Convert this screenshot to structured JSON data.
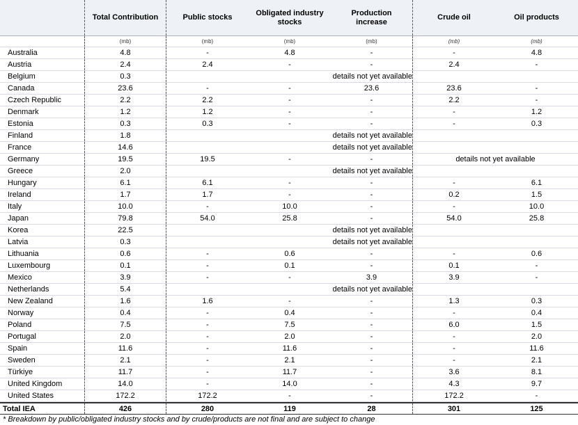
{
  "table": {
    "header": [
      "Total Contribution",
      "Public stocks",
      "Obligated industry stocks",
      "Production increase",
      "Crude oil",
      "Oil products"
    ],
    "units": [
      "(mb)",
      "(mb)",
      "(mb)",
      "(mb)",
      "(mb)",
      "(mb)"
    ],
    "rows": [
      [
        "Australia",
        "4.8",
        "-",
        "4.8",
        "-",
        "-",
        "4.8"
      ],
      [
        "Austria",
        "2.4",
        "2.4",
        "-",
        "-",
        "2.4",
        "-"
      ],
      [
        "Belgium",
        "0.3",
        null,
        null,
        "details not yet available",
        null,
        null
      ],
      [
        "Canada",
        "23.6",
        "-",
        "-",
        "23.6",
        "23.6",
        "-"
      ],
      [
        "Czech Republic",
        "2.2",
        "2.2",
        "-",
        "-",
        "2.2",
        "-"
      ],
      [
        "Denmark",
        "1.2",
        "1.2",
        "-",
        "-",
        "-",
        "1.2"
      ],
      [
        "Estonia",
        "0.3",
        "0.3",
        "-",
        "-",
        "-",
        "0.3"
      ],
      [
        "Finland",
        "1.8",
        null,
        null,
        "details not yet available",
        null,
        null
      ],
      [
        "France",
        "14.6",
        null,
        null,
        "details not yet available",
        null,
        null
      ],
      [
        "Germany",
        "19.5",
        "19.5",
        "-",
        "-",
        "details not yet available"
      ],
      [
        "Greece",
        "2.0",
        null,
        null,
        "details not yet available",
        null,
        null
      ],
      [
        "Hungary",
        "6.1",
        "6.1",
        "-",
        "-",
        "-",
        "6.1"
      ],
      [
        "Ireland",
        "1.7",
        "1.7",
        "-",
        "-",
        "0.2",
        "1.5"
      ],
      [
        "Italy",
        "10.0",
        "-",
        "10.0",
        "-",
        "-",
        "10.0"
      ],
      [
        "Japan",
        "79.8",
        "54.0",
        "25.8",
        "-",
        "54.0",
        "25.8"
      ],
      [
        "Korea",
        "22.5",
        null,
        null,
        "details not yet available",
        null,
        null
      ],
      [
        "Latvia",
        "0.3",
        null,
        null,
        "details not yet available",
        null,
        null
      ],
      [
        "Lithuania",
        "0.6",
        "-",
        "0.6",
        "-",
        "-",
        "0.6"
      ],
      [
        "Luxembourg",
        "0.1",
        "-",
        "0.1",
        "-",
        "0.1",
        "-"
      ],
      [
        "Mexico",
        "3.9",
        "-",
        "-",
        "3.9",
        "3.9",
        "-"
      ],
      [
        "Netherlands",
        "5.4",
        null,
        null,
        "details not yet available",
        null,
        null
      ],
      [
        "New Zealand",
        "1.6",
        "1.6",
        "-",
        "-",
        "1.3",
        "0.3"
      ],
      [
        "Norway",
        "0.4",
        "-",
        "0.4",
        "-",
        "-",
        "0.4"
      ],
      [
        "Poland",
        "7.5",
        "-",
        "7.5",
        "-",
        "6.0",
        "1.5"
      ],
      [
        "Portugal",
        "2.0",
        "-",
        "2.0",
        "-",
        "-",
        "2.0"
      ],
      [
        "Spain",
        "11.6",
        "-",
        "11.6",
        "-",
        "-",
        "11.6"
      ],
      [
        "Sweden",
        "2.1",
        "-",
        "2.1",
        "-",
        "-",
        "2.1"
      ],
      [
        "Türkiye",
        "11.7",
        "-",
        "11.7",
        "-",
        "3.6",
        "8.1"
      ],
      [
        "United Kingdom",
        "14.0",
        "-",
        "14.0",
        "-",
        "4.3",
        "9.7"
      ],
      [
        "United States",
        "172.2",
        "172.2",
        "-",
        "-",
        "172.2",
        "-"
      ]
    ],
    "total": [
      "Total IEA",
      "426",
      "280",
      "119",
      "28",
      "301",
      "125"
    ],
    "footnote": "* Breakdown by public/obligated industry stocks and by crude/products are not final and are subject to change"
  }
}
